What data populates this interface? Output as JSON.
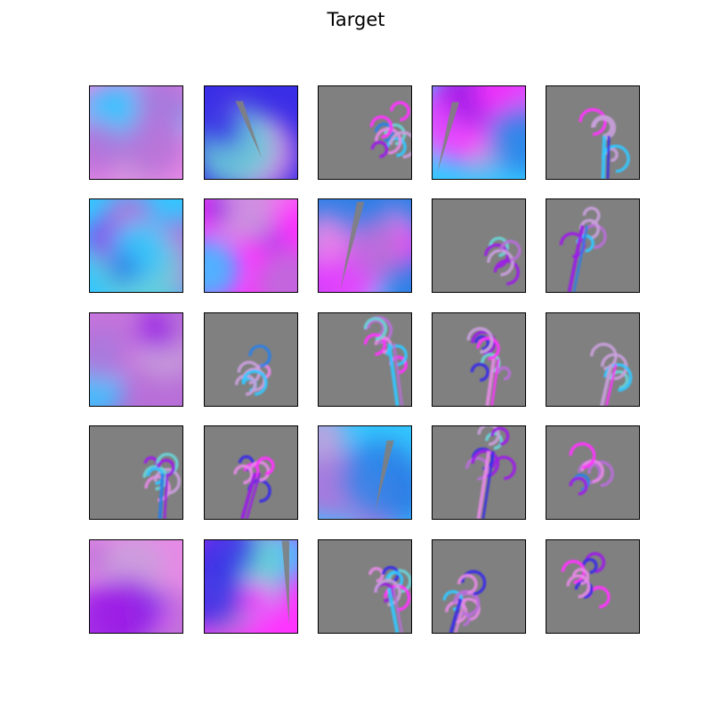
{
  "title": "Target",
  "grid": {
    "rows": 5,
    "cols": 5
  },
  "colors": {
    "background_gray": "#808080",
    "palette": [
      "#e68ae6",
      "#ff33ff",
      "#2e7fe6",
      "#3a2ee6",
      "#6ad3d6",
      "#9b1fe6",
      "#33c6ff",
      "#c9a0dc",
      "#b86fd8"
    ]
  },
  "tiles": [
    {
      "type": "blur"
    },
    {
      "type": "blur"
    },
    {
      "type": "rings"
    },
    {
      "type": "blur"
    },
    {
      "type": "rings"
    },
    {
      "type": "blur"
    },
    {
      "type": "blur"
    },
    {
      "type": "blur"
    },
    {
      "type": "rings"
    },
    {
      "type": "rings"
    },
    {
      "type": "blur"
    },
    {
      "type": "rings"
    },
    {
      "type": "rings"
    },
    {
      "type": "rings"
    },
    {
      "type": "rings"
    },
    {
      "type": "rings"
    },
    {
      "type": "rings"
    },
    {
      "type": "blur"
    },
    {
      "type": "rings"
    },
    {
      "type": "rings"
    },
    {
      "type": "blur"
    },
    {
      "type": "blur"
    },
    {
      "type": "rings"
    },
    {
      "type": "rings"
    },
    {
      "type": "rings"
    }
  ]
}
